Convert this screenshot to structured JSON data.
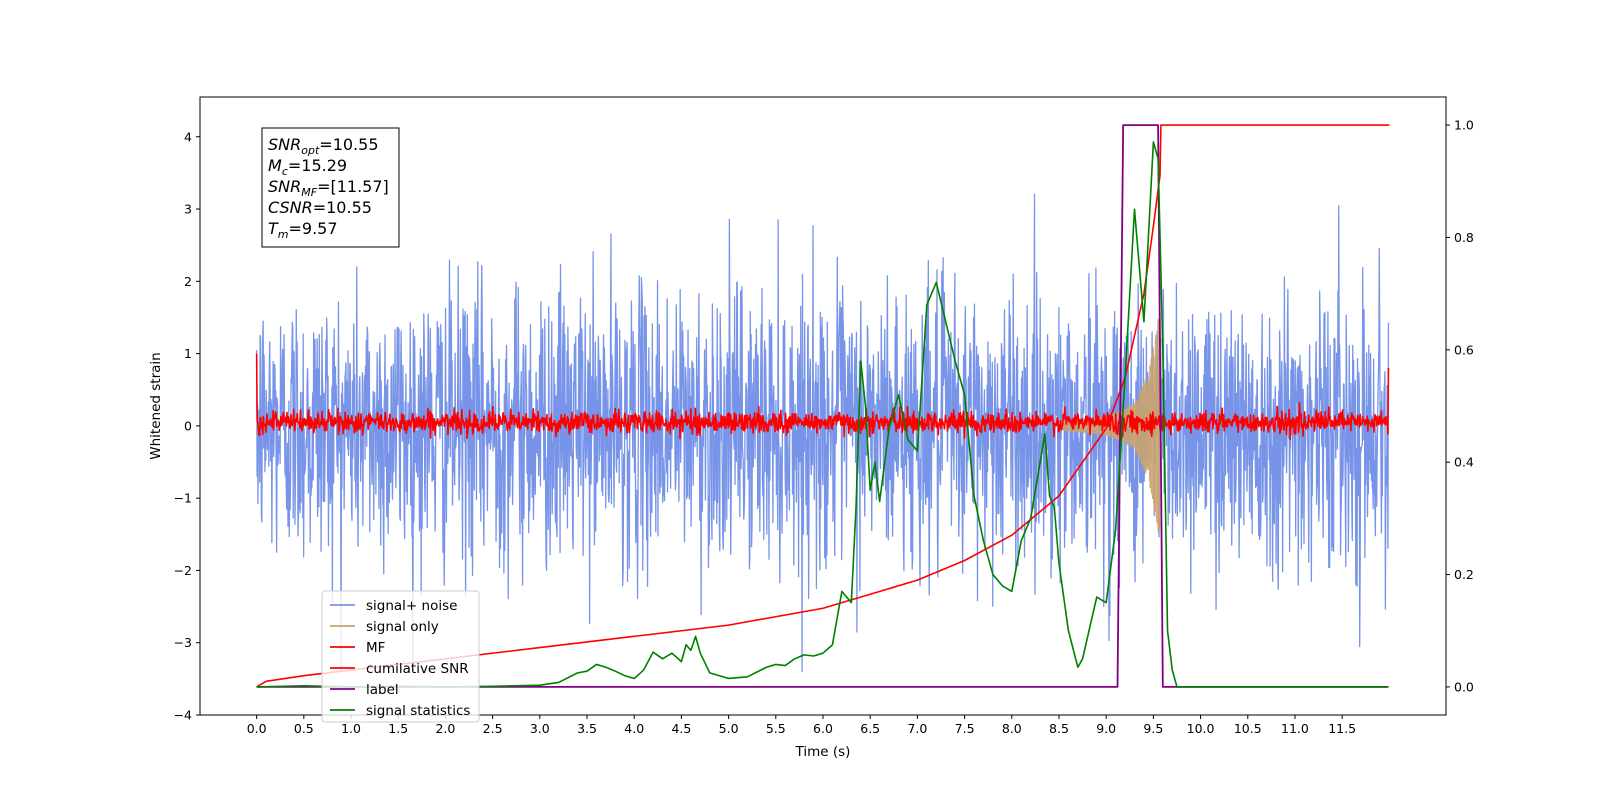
{
  "chart_data": {
    "type": "line",
    "xlabel": "Time (s)",
    "ylabel": "Whitened strain",
    "xlim": [
      -0.6,
      12.6
    ],
    "ylim": [
      -4,
      4.55
    ],
    "y2lim": [
      -0.05,
      1.05
    ],
    "x_ticks": [
      "0.0",
      "0.5",
      "1.0",
      "1.5",
      "2.0",
      "2.5",
      "3.0",
      "3.5",
      "4.0",
      "4.5",
      "5.0",
      "5.5",
      "6.0",
      "6.5",
      "7.0",
      "7.5",
      "8.0",
      "8.5",
      "9.0",
      "9.5",
      "10.0",
      "10.5",
      "11.0",
      "11.5"
    ],
    "y_ticks": [
      "4",
      "3",
      "2",
      "1",
      "0",
      "−1",
      "−2",
      "−3",
      "−4"
    ],
    "y2_ticks": [
      "1.0",
      "0.8",
      "0.6",
      "0.4",
      "0.2",
      "0.0"
    ],
    "legend_position": "lower-left",
    "annotation": {
      "lines": [
        {
          "main": "SNR",
          "sub": "opt",
          "value": "=10.55"
        },
        {
          "main": "M",
          "sub": "c",
          "value": "=15.29"
        },
        {
          "main": "SNR",
          "sub": "MF",
          "value": "=[11.57]"
        },
        {
          "main": "CSNR",
          "sub": "",
          "value": "=10.55"
        },
        {
          "main": "T",
          "sub": "m",
          "value": "=9.57"
        }
      ]
    },
    "series": [
      {
        "name": "signal+ noise",
        "color": "#7794e8",
        "axis": "left",
        "kind": "noise",
        "x_range": [
          0,
          11.99
        ],
        "amplitude_range": [
          -3.4,
          3.2
        ]
      },
      {
        "name": "signal only",
        "color": "#c9a36e",
        "axis": "left",
        "kind": "chirp",
        "merger_time": 9.57,
        "envelope": [
          [
            8.5,
            0.05
          ],
          [
            9.0,
            0.12
          ],
          [
            9.3,
            0.3
          ],
          [
            9.45,
            0.75
          ],
          [
            9.57,
            1.6
          ]
        ]
      },
      {
        "name": "MF",
        "color": "#ff0000",
        "axis": "left",
        "kind": "mf",
        "x_range": [
          0,
          11.99
        ],
        "level": 0.05,
        "spread": 0.15
      },
      {
        "name": "cumilative SNR",
        "color": "#ff0000",
        "axis": "right",
        "x": [
          0.0,
          0.1,
          0.5,
          1.0,
          2.0,
          3.0,
          4.0,
          5.0,
          6.0,
          6.5,
          7.0,
          7.5,
          8.0,
          8.5,
          9.0,
          9.2,
          9.4,
          9.5,
          9.57,
          9.58,
          12.0
        ],
        "y": [
          0.0,
          0.01,
          0.02,
          0.03,
          0.05,
          0.07,
          0.09,
          0.11,
          0.14,
          0.165,
          0.19,
          0.225,
          0.27,
          0.34,
          0.46,
          0.55,
          0.7,
          0.82,
          0.91,
          1.0,
          1.0
        ]
      },
      {
        "name": "label",
        "color": "#800080",
        "axis": "right",
        "x": [
          0.0,
          9.12,
          9.18,
          9.55,
          9.6,
          11.99
        ],
        "y": [
          0.0,
          0.0,
          1.0,
          1.0,
          0.0,
          0.0
        ]
      },
      {
        "name": "signal statistics",
        "color": "#008000",
        "axis": "right",
        "x": [
          0.0,
          0.5,
          1.0,
          1.5,
          2.0,
          2.5,
          3.0,
          3.2,
          3.4,
          3.5,
          3.6,
          3.7,
          3.8,
          3.9,
          4.0,
          4.1,
          4.2,
          4.3,
          4.4,
          4.5,
          4.55,
          4.6,
          4.65,
          4.7,
          4.8,
          4.9,
          5.0,
          5.2,
          5.4,
          5.5,
          5.6,
          5.7,
          5.8,
          5.9,
          6.0,
          6.1,
          6.2,
          6.3,
          6.35,
          6.4,
          6.45,
          6.5,
          6.55,
          6.6,
          6.7,
          6.8,
          6.9,
          7.0,
          7.1,
          7.2,
          7.3,
          7.4,
          7.5,
          7.6,
          7.7,
          7.8,
          7.9,
          8.0,
          8.1,
          8.2,
          8.3,
          8.35,
          8.4,
          8.45,
          8.5,
          8.6,
          8.7,
          8.75,
          8.9,
          9.0,
          9.1,
          9.2,
          9.3,
          9.4,
          9.5,
          9.55,
          9.6,
          9.65,
          9.7,
          9.75,
          9.8,
          11.99
        ],
        "y": [
          0.0,
          0.002,
          0.0,
          0.001,
          0.0,
          0.001,
          0.003,
          0.008,
          0.025,
          0.028,
          0.04,
          0.035,
          0.028,
          0.02,
          0.015,
          0.03,
          0.062,
          0.05,
          0.06,
          0.045,
          0.075,
          0.065,
          0.09,
          0.06,
          0.025,
          0.02,
          0.015,
          0.018,
          0.035,
          0.04,
          0.038,
          0.05,
          0.057,
          0.055,
          0.06,
          0.075,
          0.17,
          0.15,
          0.32,
          0.58,
          0.5,
          0.35,
          0.4,
          0.33,
          0.46,
          0.52,
          0.44,
          0.42,
          0.68,
          0.72,
          0.65,
          0.58,
          0.52,
          0.34,
          0.26,
          0.2,
          0.18,
          0.17,
          0.26,
          0.3,
          0.4,
          0.45,
          0.34,
          0.32,
          0.22,
          0.1,
          0.035,
          0.05,
          0.16,
          0.15,
          0.28,
          0.55,
          0.85,
          0.65,
          0.97,
          0.94,
          0.6,
          0.1,
          0.03,
          0.0,
          0.0,
          0.0
        ]
      }
    ]
  }
}
